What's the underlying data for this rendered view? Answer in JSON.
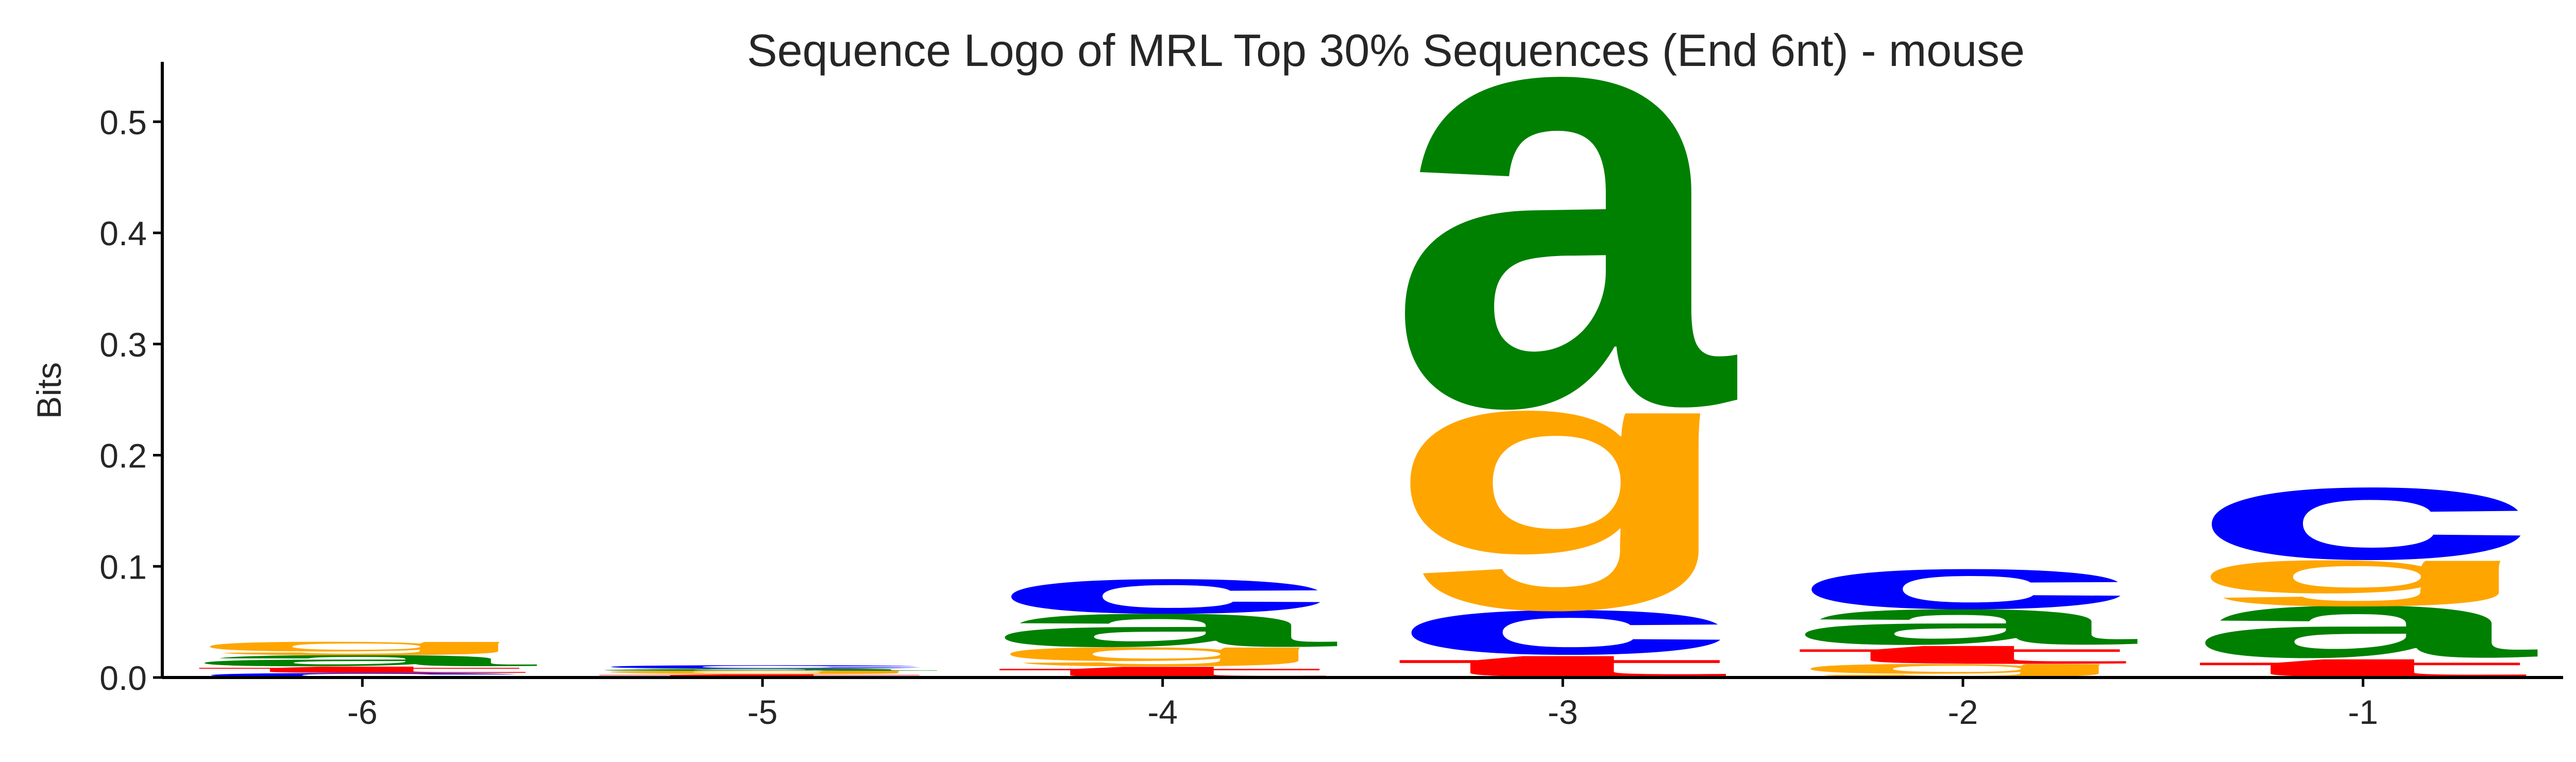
{
  "chart_data": {
    "type": "sequence-logo",
    "title": "Sequence Logo of MRL Top 30% Sequences (End 6nt) - mouse",
    "xlabel": "",
    "ylabel": "Bits",
    "ylim": [
      0,
      0.54
    ],
    "yticks": [
      0.0,
      0.1,
      0.2,
      0.3,
      0.4,
      0.5
    ],
    "ytick_labels": [
      "0.0",
      "0.1",
      "0.2",
      "0.3",
      "0.4",
      "0.5"
    ],
    "categories": [
      "-6",
      "-5",
      "-4",
      "-3",
      "-2",
      "-1"
    ],
    "grid": false,
    "legend": "none",
    "colors": {
      "a": "#008000",
      "c": "#0000ff",
      "g": "#ffa500",
      "t": "#ff0000"
    },
    "positions": [
      {
        "label": "-6",
        "stack": [
          {
            "base": "c",
            "height": 0.004
          },
          {
            "base": "t",
            "height": 0.006
          },
          {
            "base": "a",
            "height": 0.01
          },
          {
            "base": "g",
            "height": 0.012
          }
        ]
      },
      {
        "label": "-5",
        "stack": [
          {
            "base": "t",
            "height": 0.003
          },
          {
            "base": "g",
            "height": 0.003
          },
          {
            "base": "a",
            "height": 0.002
          },
          {
            "base": "c",
            "height": 0.003
          }
        ]
      },
      {
        "label": "-4",
        "stack": [
          {
            "base": "t",
            "height": 0.01
          },
          {
            "base": "g",
            "height": 0.017
          },
          {
            "base": "a",
            "height": 0.03
          },
          {
            "base": "c",
            "height": 0.031
          }
        ]
      },
      {
        "label": "-3",
        "stack": [
          {
            "base": "t",
            "height": 0.02
          },
          {
            "base": "c",
            "height": 0.04
          },
          {
            "base": "g",
            "height": 0.178
          },
          {
            "base": "a",
            "height": 0.298
          }
        ]
      },
      {
        "label": "-2",
        "stack": [
          {
            "base": "g",
            "height": 0.012
          },
          {
            "base": "t",
            "height": 0.017
          },
          {
            "base": "a",
            "height": 0.032
          },
          {
            "base": "c",
            "height": 0.036
          }
        ]
      },
      {
        "label": "-1",
        "stack": [
          {
            "base": "t",
            "height": 0.017
          },
          {
            "base": "a",
            "height": 0.047
          },
          {
            "base": "g",
            "height": 0.041
          },
          {
            "base": "c",
            "height": 0.065
          }
        ]
      }
    ]
  }
}
